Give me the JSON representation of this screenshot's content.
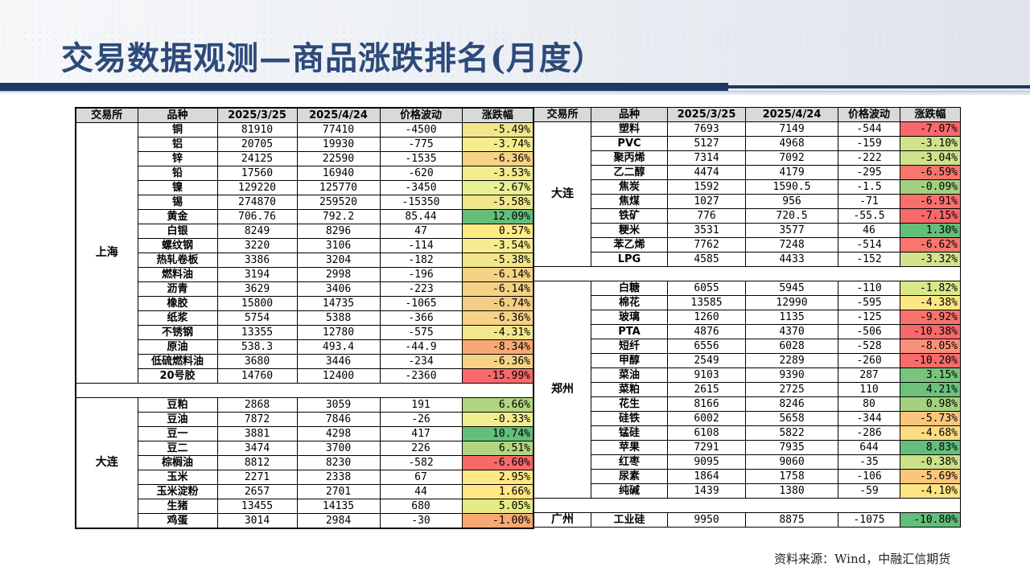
{
  "title": "交易数据观测—商品涨跌排名(月度）",
  "footer": "资料来源：Wind，中融汇信期货",
  "headers": [
    "交易所",
    "品种",
    "2025/3/25",
    "2025/4/24",
    "价格波动",
    "涨跌幅"
  ],
  "left_groups": [
    {
      "exchange": "上海",
      "rows": [
        {
          "name": "铜",
          "p1": "81910",
          "p2": "77410",
          "chg": "-4500",
          "pct": "-5.49%",
          "color": "#f1e68c"
        },
        {
          "name": "铝",
          "p1": "20705",
          "p2": "19930",
          "chg": "-775",
          "pct": "-3.74%",
          "color": "#f5ec8f"
        },
        {
          "name": "锌",
          "p1": "24125",
          "p2": "22590",
          "chg": "-1535",
          "pct": "-6.36%",
          "color": "#f6d285"
        },
        {
          "name": "铅",
          "p1": "17560",
          "p2": "16940",
          "chg": "-620",
          "pct": "-3.53%",
          "color": "#f5ec8f"
        },
        {
          "name": "镍",
          "p1": "129220",
          "p2": "125770",
          "chg": "-3450",
          "pct": "-2.67%",
          "color": "#eaf094"
        },
        {
          "name": "锡",
          "p1": "274870",
          "p2": "259520",
          "chg": "-15350",
          "pct": "-5.58%",
          "color": "#f1e68c"
        },
        {
          "name": "黄金",
          "p1": "706.76",
          "p2": "792.2",
          "chg": "85.44",
          "pct": "12.09%",
          "color": "#63be7b"
        },
        {
          "name": "白银",
          "p1": "8249",
          "p2": "8296",
          "chg": "47",
          "pct": "0.57%",
          "color": "#ffeb84"
        },
        {
          "name": "螺纹钢",
          "p1": "3220",
          "p2": "3106",
          "chg": "-114",
          "pct": "-3.54%",
          "color": "#f5ec8f"
        },
        {
          "name": "热轧卷板",
          "p1": "3386",
          "p2": "3204",
          "chg": "-182",
          "pct": "-5.38%",
          "color": "#f1e68c"
        },
        {
          "name": "燃料油",
          "p1": "3194",
          "p2": "2998",
          "chg": "-196",
          "pct": "-6.14%",
          "color": "#f6d285"
        },
        {
          "name": "沥青",
          "p1": "3629",
          "p2": "3406",
          "chg": "-223",
          "pct": "-6.14%",
          "color": "#f6d285"
        },
        {
          "name": "橡胶",
          "p1": "15800",
          "p2": "14735",
          "chg": "-1065",
          "pct": "-6.74%",
          "color": "#f6cd82"
        },
        {
          "name": "纸浆",
          "p1": "5754",
          "p2": "5388",
          "chg": "-366",
          "pct": "-6.36%",
          "color": "#f6d285"
        },
        {
          "name": "不锈钢",
          "p1": "13355",
          "p2": "12780",
          "chg": "-575",
          "pct": "-4.31%",
          "color": "#f3e78e"
        },
        {
          "name": "原油",
          "p1": "538.3",
          "p2": "493.4",
          "chg": "-44.9",
          "pct": "-8.34%",
          "color": "#f8a973"
        },
        {
          "name": "低硫燃料油",
          "p1": "3680",
          "p2": "3446",
          "chg": "-234",
          "pct": "-6.36%",
          "color": "#f6d285"
        },
        {
          "name": "20号胶",
          "p1": "14760",
          "p2": "12400",
          "chg": "-2360",
          "pct": "-15.99%",
          "color": "#f8696b"
        }
      ]
    },
    {
      "exchange": "大连",
      "rows": [
        {
          "name": "豆粕",
          "p1": "2868",
          "p2": "3059",
          "chg": "191",
          "pct": "6.66%",
          "color": "#b1d580"
        },
        {
          "name": "豆油",
          "p1": "7872",
          "p2": "7846",
          "chg": "-26",
          "pct": "-0.33%",
          "color": "#f2ee8e"
        },
        {
          "name": "豆一",
          "p1": "3881",
          "p2": "4298",
          "chg": "417",
          "pct": "10.74%",
          "color": "#63be7b"
        },
        {
          "name": "豆二",
          "p1": "3474",
          "p2": "3700",
          "chg": "226",
          "pct": "6.51%",
          "color": "#b1d580"
        },
        {
          "name": "棕榈油",
          "p1": "8812",
          "p2": "8230",
          "chg": "-582",
          "pct": "-6.60%",
          "color": "#f8696b"
        },
        {
          "name": "玉米",
          "p1": "2271",
          "p2": "2338",
          "chg": "67",
          "pct": "2.95%",
          "color": "#ffe784"
        },
        {
          "name": "玉米淀粉",
          "p1": "2657",
          "p2": "2701",
          "chg": "44",
          "pct": "1.66%",
          "color": "#ffe784"
        },
        {
          "name": "生猪",
          "p1": "13455",
          "p2": "14135",
          "chg": "680",
          "pct": "5.05%",
          "color": "#e4eb85"
        },
        {
          "name": "鸡蛋",
          "p1": "3014",
          "p2": "2984",
          "chg": "-30",
          "pct": "-1.00%",
          "color": "#f8a973"
        }
      ]
    }
  ],
  "right_groups": [
    {
      "exchange": "大连",
      "rows": [
        {
          "name": "塑料",
          "p1": "7693",
          "p2": "7149",
          "chg": "-544",
          "pct": "-7.07%",
          "color": "#f8696b"
        },
        {
          "name": "PVC",
          "p1": "5127",
          "p2": "4968",
          "chg": "-159",
          "pct": "-3.10%",
          "color": "#cfe28c"
        },
        {
          "name": "聚丙烯",
          "p1": "7314",
          "p2": "7092",
          "chg": "-222",
          "pct": "-3.04%",
          "color": "#cfe28c"
        },
        {
          "name": "乙二醇",
          "p1": "4474",
          "p2": "4179",
          "chg": "-295",
          "pct": "-6.59%",
          "color": "#f8766e"
        },
        {
          "name": "焦炭",
          "p1": "1592",
          "p2": "1590.5",
          "chg": "-1.5",
          "pct": "-0.09%",
          "color": "#a2d07f"
        },
        {
          "name": "焦煤",
          "p1": "1027",
          "p2": "956",
          "chg": "-71",
          "pct": "-6.91%",
          "color": "#f8706c"
        },
        {
          "name": "铁矿",
          "p1": "776",
          "p2": "720.5",
          "chg": "-55.5",
          "pct": "-7.15%",
          "color": "#f8696b"
        },
        {
          "name": "粳米",
          "p1": "3531",
          "p2": "3577",
          "chg": "46",
          "pct": "1.30%",
          "color": "#63be7b"
        },
        {
          "name": "苯乙烯",
          "p1": "7762",
          "p2": "7248",
          "chg": "-514",
          "pct": "-6.62%",
          "color": "#f8766e"
        },
        {
          "name": "LPG",
          "p1": "4585",
          "p2": "4433",
          "chg": "-152",
          "pct": "-3.32%",
          "color": "#d2e38b"
        }
      ]
    },
    {
      "exchange": "郑州",
      "rows": [
        {
          "name": "白糖",
          "p1": "6055",
          "p2": "5945",
          "chg": "-110",
          "pct": "-1.82%",
          "color": "#d8e88a"
        },
        {
          "name": "棉花",
          "p1": "13585",
          "p2": "12990",
          "chg": "-595",
          "pct": "-4.38%",
          "color": "#fde784"
        },
        {
          "name": "玻璃",
          "p1": "1260",
          "p2": "1135",
          "chg": "-125",
          "pct": "-9.92%",
          "color": "#f8726d"
        },
        {
          "name": "PTA",
          "p1": "4876",
          "p2": "4370",
          "chg": "-506",
          "pct": "-10.38%",
          "color": "#f8696b"
        },
        {
          "name": "短纤",
          "p1": "6556",
          "p2": "6028",
          "chg": "-528",
          "pct": "-8.05%",
          "color": "#f9907a"
        },
        {
          "name": "甲醇",
          "p1": "2549",
          "p2": "2289",
          "chg": "-260",
          "pct": "-10.20%",
          "color": "#f86b6b"
        },
        {
          "name": "菜油",
          "p1": "9103",
          "p2": "9390",
          "chg": "287",
          "pct": "3.15%",
          "color": "#7ac47d"
        },
        {
          "name": "菜粕",
          "p1": "2615",
          "p2": "2725",
          "chg": "110",
          "pct": "4.21%",
          "color": "#6dc17c"
        },
        {
          "name": "花生",
          "p1": "8166",
          "p2": "8246",
          "chg": "80",
          "pct": "0.98%",
          "color": "#a5d17f"
        },
        {
          "name": "硅铁",
          "p1": "6002",
          "p2": "5658",
          "chg": "-344",
          "pct": "-5.73%",
          "color": "#fcc57e"
        },
        {
          "name": "锰硅",
          "p1": "6108",
          "p2": "5822",
          "chg": "-286",
          "pct": "-4.68%",
          "color": "#fddc82"
        },
        {
          "name": "苹果",
          "p1": "7291",
          "p2": "7935",
          "chg": "644",
          "pct": "8.83%",
          "color": "#63be7b"
        },
        {
          "name": "红枣",
          "p1": "9095",
          "p2": "9060",
          "chg": "-35",
          "pct": "-0.38%",
          "color": "#cde18a"
        },
        {
          "name": "尿素",
          "p1": "1864",
          "p2": "1758",
          "chg": "-106",
          "pct": "-5.69%",
          "color": "#fcc57e"
        },
        {
          "name": "纯碱",
          "p1": "1439",
          "p2": "1380",
          "chg": "-59",
          "pct": "-4.10%",
          "color": "#fde583"
        }
      ]
    },
    {
      "exchange": "广州",
      "rows": [
        {
          "name": "工业硅",
          "p1": "9950",
          "p2": "8875",
          "chg": "-1075",
          "pct": "-10.80%",
          "color": "#63be7b"
        }
      ]
    }
  ]
}
